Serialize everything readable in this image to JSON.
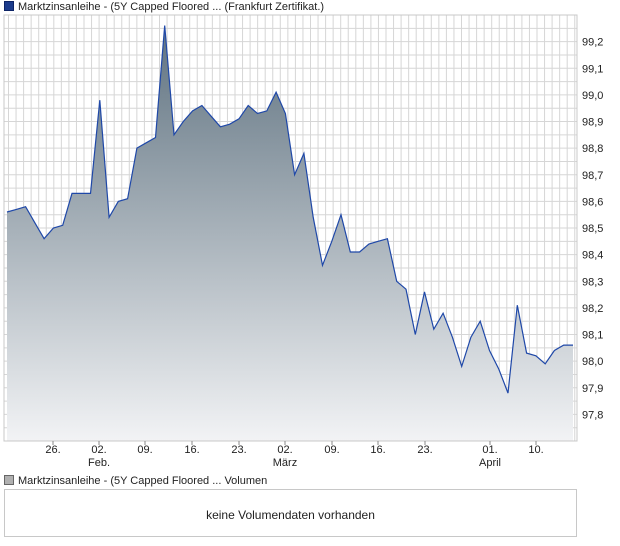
{
  "legend": {
    "price": "Marktzinsanleihe - (5Y Capped Floored ... (Frankfurt Zertifikat.)",
    "volume": "Marktzinsanleihe - (5Y Capped Floored ... Volumen"
  },
  "volume_panel": {
    "message": "keine Volumendaten vorhanden"
  },
  "colors": {
    "line": "#1f48a8",
    "fill_top": "#5f7280",
    "fill_bottom": "#f2f3f5",
    "grid": "#d6d6d6"
  },
  "chart_data": {
    "type": "area",
    "ylim": [
      97.7,
      99.3
    ],
    "y_ticks": [
      "99,2",
      "99,1",
      "99,0",
      "98,9",
      "98,8",
      "98,7",
      "98,6",
      "98,5",
      "98,4",
      "98,3",
      "98,2",
      "98,1",
      "98,0",
      "97,9",
      "97,8"
    ],
    "x_ticks": [
      {
        "day": "26.",
        "month": ""
      },
      {
        "day": "02.",
        "month": "Feb."
      },
      {
        "day": "09.",
        "month": ""
      },
      {
        "day": "16.",
        "month": ""
      },
      {
        "day": "23.",
        "month": ""
      },
      {
        "day": "02.",
        "month": "März"
      },
      {
        "day": "09.",
        "month": ""
      },
      {
        "day": "16.",
        "month": ""
      },
      {
        "day": "23.",
        "month": ""
      },
      {
        "day": "01.",
        "month": "April"
      },
      {
        "day": "10.",
        "month": ""
      }
    ],
    "series": [
      {
        "values": [
          98.56,
          98.57,
          98.58,
          98.52,
          98.46,
          98.5,
          98.51,
          98.63,
          98.63,
          98.63,
          98.98,
          98.54,
          98.6,
          98.61,
          98.8,
          98.82,
          98.84,
          99.26,
          98.85,
          98.9,
          98.94,
          98.96,
          98.92,
          98.88,
          98.89,
          98.91,
          98.96,
          98.93,
          98.94,
          99.01,
          98.93,
          98.7,
          98.78,
          98.54,
          98.36,
          98.45,
          98.55,
          98.41,
          98.41,
          98.44,
          98.45,
          98.46,
          98.3,
          98.27,
          98.1,
          98.26,
          98.12,
          98.18,
          98.09,
          97.98,
          98.09,
          98.15,
          98.04,
          97.97,
          97.88,
          98.21,
          98.03,
          98.02,
          97.99,
          98.04,
          98.06,
          98.06
        ]
      }
    ]
  }
}
